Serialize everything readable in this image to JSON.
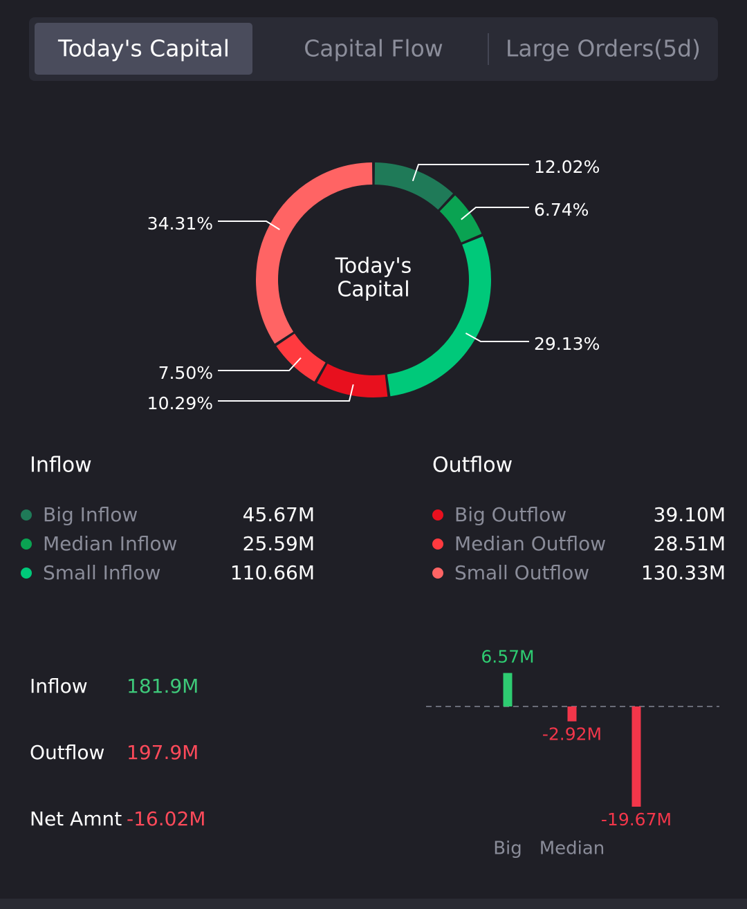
{
  "tabs": [
    "Today's Capital",
    "Capital Flow",
    "Large Orders(5d)"
  ],
  "chart_data": [
    {
      "type": "donut",
      "center_label": [
        "Today's",
        "Capital"
      ],
      "values": [
        12.02,
        6.74,
        29.13,
        10.29,
        7.5,
        34.31
      ],
      "value_labels": [
        "12.02%",
        "6.74%",
        "29.13%",
        "10.29%",
        "7.50%",
        "34.31%"
      ],
      "colors": [
        "#1f7a58",
        "#0aa352",
        "#00c97a",
        "#e8101e",
        "#ff3a3f",
        "#ff6464"
      ]
    },
    {
      "type": "bar",
      "categories": [
        "Big",
        "Median",
        null
      ],
      "values": [
        6.57,
        -2.92,
        -19.67
      ],
      "value_labels": [
        "6.57M",
        "-2.92M",
        "-19.67M"
      ],
      "colors": [
        "#2ecc71",
        "#f2364a",
        "#f2364a"
      ]
    }
  ],
  "inflow": {
    "title": "Inflow",
    "items": [
      {
        "name": "Big Inflow",
        "amount": "45.67M"
      },
      {
        "name": "Median Inflow",
        "amount": "25.59M"
      },
      {
        "name": "Small Inflow",
        "amount": "110.66M"
      }
    ]
  },
  "outflow": {
    "title": "Outflow",
    "items": [
      {
        "name": "Big Outflow",
        "amount": "39.10M"
      },
      {
        "name": "Median Outflow",
        "amount": "28.51M"
      },
      {
        "name": "Small Outflow",
        "amount": "130.33M"
      }
    ]
  },
  "summary": [
    {
      "label": "Inflow",
      "value": "181.9M",
      "color": "#3ec97a"
    },
    {
      "label": "Outflow",
      "value": "197.9M",
      "color": "#ff4a5a"
    },
    {
      "label": "Net Amnt",
      "value": "-16.02M",
      "color": "#ff4a5a"
    }
  ]
}
